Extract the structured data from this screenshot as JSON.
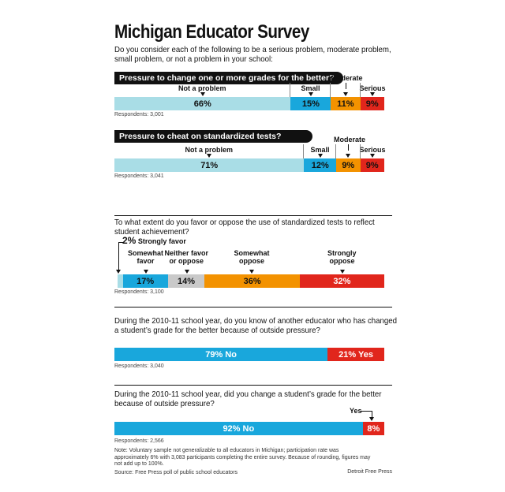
{
  "title": "Michigan Educator Survey",
  "intro": [
    "Do you consider each of the following to be a serious problem, moderate problem,",
    "small problem, or not a problem in your school:"
  ],
  "colors": {
    "not_problem": "#a9dde6",
    "small": "#19a7dc",
    "moderate": "#f39200",
    "serious": "#e1261c",
    "neither": "#c9c9c9"
  },
  "chart_data": [
    {
      "type": "bar",
      "title": "Pressure to change one or more grades for the better?",
      "categories": [
        "Not a problem",
        "Small",
        "Moderate",
        "Serious"
      ],
      "values": [
        66,
        15,
        11,
        9
      ],
      "value_labels": [
        "66%",
        "15%",
        "11%",
        "9%"
      ],
      "respondents": "Respondents: 3,001"
    },
    {
      "type": "bar",
      "title": "Pressure to cheat on standardized tests?",
      "categories": [
        "Not a problem",
        "Small",
        "Moderate",
        "Serious"
      ],
      "values": [
        71,
        12,
        9,
        9
      ],
      "value_labels": [
        "71%",
        "12%",
        "9%",
        "9%"
      ],
      "respondents": "Respondents: 3,041"
    },
    {
      "type": "bar",
      "title": "To what extent do you favor or oppose the use of standardized tests to reflect student achievement?",
      "title_lines": [
        "To what extent do you favor or oppose the use of standardized tests to reflect",
        "student achievement?"
      ],
      "categories": [
        "Strongly favor",
        "Somewhat favor",
        "Neither favor or oppose",
        "Somewhat oppose",
        "Strongly oppose"
      ],
      "label_lines": [
        [
          "Strongly favor"
        ],
        [
          "Somewhat",
          "favor"
        ],
        [
          "Neither favor",
          "or oppose"
        ],
        [
          "Somewhat",
          "oppose"
        ],
        [
          "Strongly",
          "oppose"
        ]
      ],
      "values": [
        2,
        17,
        14,
        36,
        32
      ],
      "value_labels": [
        "2%",
        "17%",
        "14%",
        "36%",
        "32%"
      ],
      "respondents": "Respondents: 3,100"
    },
    {
      "type": "bar",
      "title": "During the 2010-11 school year, do you know of another educator who has changed a student's grade for the better because of outside pressure?",
      "title_lines": [
        "During the 2010-11 school year, do you know of another educator who has changed",
        "a student’s grade for the better because of outside pressure?"
      ],
      "categories": [
        "No",
        "Yes"
      ],
      "values": [
        79,
        21
      ],
      "value_labels": [
        "79% No",
        "21% Yes"
      ],
      "respondents": "Respondents: 3,040"
    },
    {
      "type": "bar",
      "title": "During the 2010-11 school year, did you change a student's grade for the better because of outside pressure?",
      "title_lines": [
        "During the 2010-11 school year, did you change a student’s grade for the better",
        "because of outside pressure?"
      ],
      "categories": [
        "No",
        "Yes"
      ],
      "values": [
        92,
        8
      ],
      "value_labels": [
        "92% No",
        "8%"
      ],
      "yes_label": "Yes",
      "respondents": "Respondents: 2,566"
    }
  ],
  "note": [
    "Note: Voluntary sample not generalizable to all educators in Michigan; participation rate was",
    "approximately 6% with 3,083 participants completing the entire survey. Because of rounding, figures may",
    "not add up to 100%."
  ],
  "source": "Source: Free Press poll of public school educators",
  "credit": "Detroit Free Press"
}
